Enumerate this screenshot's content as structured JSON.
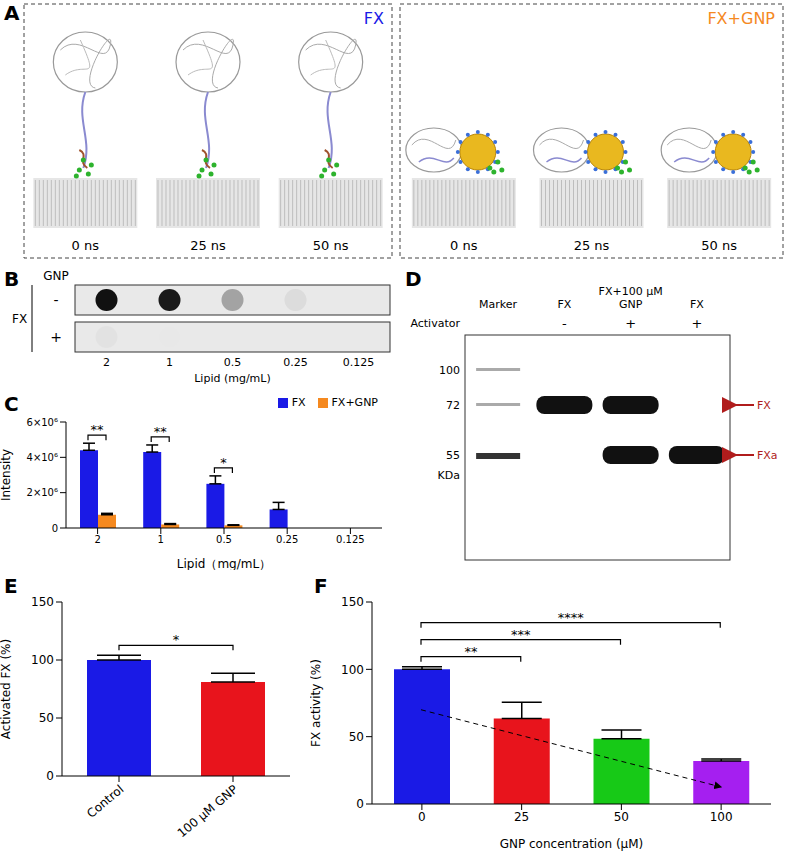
{
  "panels": {
    "A": {
      "letter": "A",
      "groups": [
        {
          "label": "FX",
          "color": "#1a1ae6",
          "times": [
            "0 ns",
            "25 ns",
            "50 ns"
          ]
        },
        {
          "label": "FX+GNP",
          "color": "#f5891f",
          "times": [
            "0 ns",
            "25 ns",
            "50 ns"
          ]
        }
      ]
    },
    "B": {
      "letter": "B",
      "column_label": "GNP",
      "row_label": "FX",
      "rows": [
        "-",
        "+"
      ],
      "x_label": "Lipid (mg/mL)",
      "x": [
        "2",
        "1",
        "0.5",
        "0.25",
        "0.125"
      ]
    },
    "D": {
      "letter": "D",
      "row_label": "Activator",
      "lanes": [
        {
          "name": "Marker",
          "activator": null,
          "bands": []
        },
        {
          "name": "FX",
          "activator": "-",
          "bands": [
            "FX"
          ]
        },
        {
          "name": "FX+100 μM GNP",
          "activator": "+",
          "bands": [
            "FX",
            "FXa"
          ]
        },
        {
          "name": "FX",
          "activator": "+",
          "bands": [
            "FXa"
          ]
        }
      ],
      "mw": [
        100,
        72,
        55
      ],
      "mw_unit": "KDa",
      "bands": [
        "FX",
        "FXa"
      ]
    }
  },
  "chart_data": [
    {
      "panel": "C",
      "type": "bar",
      "x_label": "Lipid（mg/mL）",
      "y_label": "Intensity",
      "categories": [
        "2",
        "1",
        "0.5",
        "0.25",
        "0.125"
      ],
      "series": [
        {
          "name": "FX",
          "color": "#1a1ae6",
          "values": [
            4400000,
            4300000,
            2500000,
            1050000,
            0
          ],
          "errors": [
            400000,
            400000,
            450000,
            400000,
            0
          ]
        },
        {
          "name": "FX+GNP",
          "color": "#f5891f",
          "values": [
            750000,
            200000,
            150000,
            0,
            0
          ],
          "errors": [
            80000,
            50000,
            30000,
            0,
            0
          ]
        }
      ],
      "ylim": [
        0,
        6000000
      ],
      "yticks": [
        0,
        {
          "value": 2000000,
          "label": "2×10⁶"
        },
        {
          "value": 4000000,
          "label": "4×10⁶"
        },
        {
          "value": 6000000,
          "label": "6×10⁶"
        }
      ],
      "legend": "upper right",
      "annotations": [
        {
          "category": "2",
          "text": "**"
        },
        {
          "category": "1",
          "text": "**"
        },
        {
          "category": "0.5",
          "text": "*"
        }
      ]
    },
    {
      "panel": "E",
      "type": "bar",
      "y_label": "Activated FX (%)",
      "categories": [
        "Control",
        "100 μM GNP"
      ],
      "values": [
        100,
        81
      ],
      "errors": [
        4,
        7.5
      ],
      "colors": [
        "#1a1ae6",
        "#e8141c"
      ],
      "ylim": [
        0,
        150
      ],
      "yticks": [
        0,
        50,
        100,
        150
      ],
      "annotations": [
        {
          "from": "Control",
          "to": "100 μM GNP",
          "text": "*"
        }
      ]
    },
    {
      "panel": "F",
      "type": "bar",
      "x_label": "GNP concentration (μM)",
      "y_label": "FX activity (%)",
      "categories": [
        "0",
        "25",
        "50",
        "100"
      ],
      "values": [
        100,
        63.5,
        48.5,
        32
      ],
      "errors": [
        2,
        12,
        6.5,
        1.5
      ],
      "colors": [
        "#1a1ae6",
        "#e8141c",
        "#17c917",
        "#a51ff0"
      ],
      "ylim": [
        0,
        150
      ],
      "yticks": [
        0,
        50,
        100,
        150
      ],
      "annotations": [
        {
          "from": "0",
          "to": "25",
          "text": "**"
        },
        {
          "from": "0",
          "to": "50",
          "text": "***"
        },
        {
          "from": "0",
          "to": "100",
          "text": "****"
        }
      ]
    }
  ]
}
